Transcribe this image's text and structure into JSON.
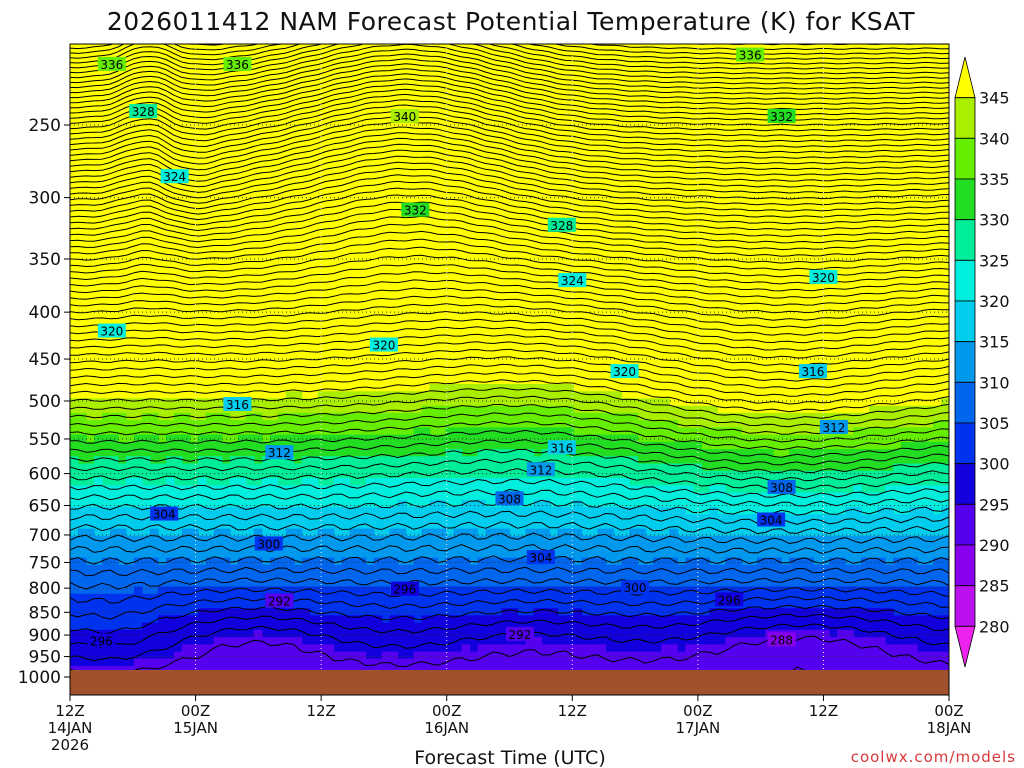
{
  "chart_data": {
    "type": "heatmap",
    "title": "2026011412 NAM Forecast Potential Temperature (K) for KSAT",
    "xlabel": "Forecast Time (UTC)",
    "ylabel": "",
    "pressure_ticks": [
      250,
      300,
      350,
      400,
      450,
      500,
      550,
      600,
      650,
      700,
      750,
      800,
      850,
      900,
      950,
      1000
    ],
    "ylim": [
      1000,
      200
    ],
    "y_scale": "log-pressure",
    "time_ticks": [
      {
        "hour": 0,
        "l1": "12Z",
        "l2": "14JAN",
        "l3": "2026"
      },
      {
        "hour": 12,
        "l1": "00Z",
        "l2": "15JAN",
        "l3": ""
      },
      {
        "hour": 24,
        "l1": "12Z",
        "l2": "",
        "l3": ""
      },
      {
        "hour": 36,
        "l1": "00Z",
        "l2": "16JAN",
        "l3": ""
      },
      {
        "hour": 48,
        "l1": "12Z",
        "l2": "",
        "l3": ""
      },
      {
        "hour": 60,
        "l1": "00Z",
        "l2": "17JAN",
        "l3": ""
      },
      {
        "hour": 72,
        "l1": "12Z",
        "l2": "",
        "l3": ""
      },
      {
        "hour": 84,
        "l1": "00Z",
        "l2": "18JAN",
        "l3": ""
      }
    ],
    "xlim": [
      0,
      84
    ],
    "grid": true,
    "colorbar": {
      "levels": [
        280,
        285,
        290,
        295,
        300,
        305,
        310,
        315,
        320,
        325,
        330,
        335,
        340,
        345
      ],
      "colors": [
        "#ee22ee",
        "#bb11ee",
        "#8800ee",
        "#5500ee",
        "#1100dd",
        "#0033ee",
        "#0066ee",
        "#0099ee",
        "#00ccee",
        "#00eedd",
        "#00ee99",
        "#22dd22",
        "#66ee00",
        "#aaee00",
        "#ffff00"
      ],
      "position": "right"
    },
    "surface_color": "#a0522d",
    "contour_interval": 2,
    "contour_labels": [
      {
        "value": 336,
        "hour": 4,
        "p": 215
      },
      {
        "value": 336,
        "hour": 16,
        "p": 215
      },
      {
        "value": 336,
        "hour": 65,
        "p": 210
      },
      {
        "value": 340,
        "hour": 32,
        "p": 245
      },
      {
        "value": 332,
        "hour": 68,
        "p": 245
      },
      {
        "value": 328,
        "hour": 7,
        "p": 242
      },
      {
        "value": 324,
        "hour": 10,
        "p": 285
      },
      {
        "value": 332,
        "hour": 33,
        "p": 310
      },
      {
        "value": 328,
        "hour": 47,
        "p": 322
      },
      {
        "value": 324,
        "hour": 48,
        "p": 370
      },
      {
        "value": 320,
        "hour": 72,
        "p": 367
      },
      {
        "value": 320,
        "hour": 4,
        "p": 420
      },
      {
        "value": 320,
        "hour": 30,
        "p": 435
      },
      {
        "value": 320,
        "hour": 53,
        "p": 465
      },
      {
        "value": 316,
        "hour": 71,
        "p": 465
      },
      {
        "value": 316,
        "hour": 16,
        "p": 505
      },
      {
        "value": 312,
        "hour": 73,
        "p": 535
      },
      {
        "value": 312,
        "hour": 20,
        "p": 570
      },
      {
        "value": 316,
        "hour": 47,
        "p": 563
      },
      {
        "value": 312,
        "hour": 45,
        "p": 595
      },
      {
        "value": 308,
        "hour": 42,
        "p": 640
      },
      {
        "value": 308,
        "hour": 68,
        "p": 622
      },
      {
        "value": 304,
        "hour": 9,
        "p": 665
      },
      {
        "value": 304,
        "hour": 67,
        "p": 675
      },
      {
        "value": 300,
        "hour": 19,
        "p": 717
      },
      {
        "value": 304,
        "hour": 45,
        "p": 742
      },
      {
        "value": 296,
        "hour": 32,
        "p": 803
      },
      {
        "value": 300,
        "hour": 54,
        "p": 800
      },
      {
        "value": 296,
        "hour": 63,
        "p": 825
      },
      {
        "value": 292,
        "hour": 20,
        "p": 827
      },
      {
        "value": 292,
        "hour": 43,
        "p": 900
      },
      {
        "value": 288,
        "hour": 68,
        "p": 912
      },
      {
        "value": 296,
        "hour": 3,
        "p": 915
      }
    ]
  },
  "watermark": "coolwx.com/models"
}
